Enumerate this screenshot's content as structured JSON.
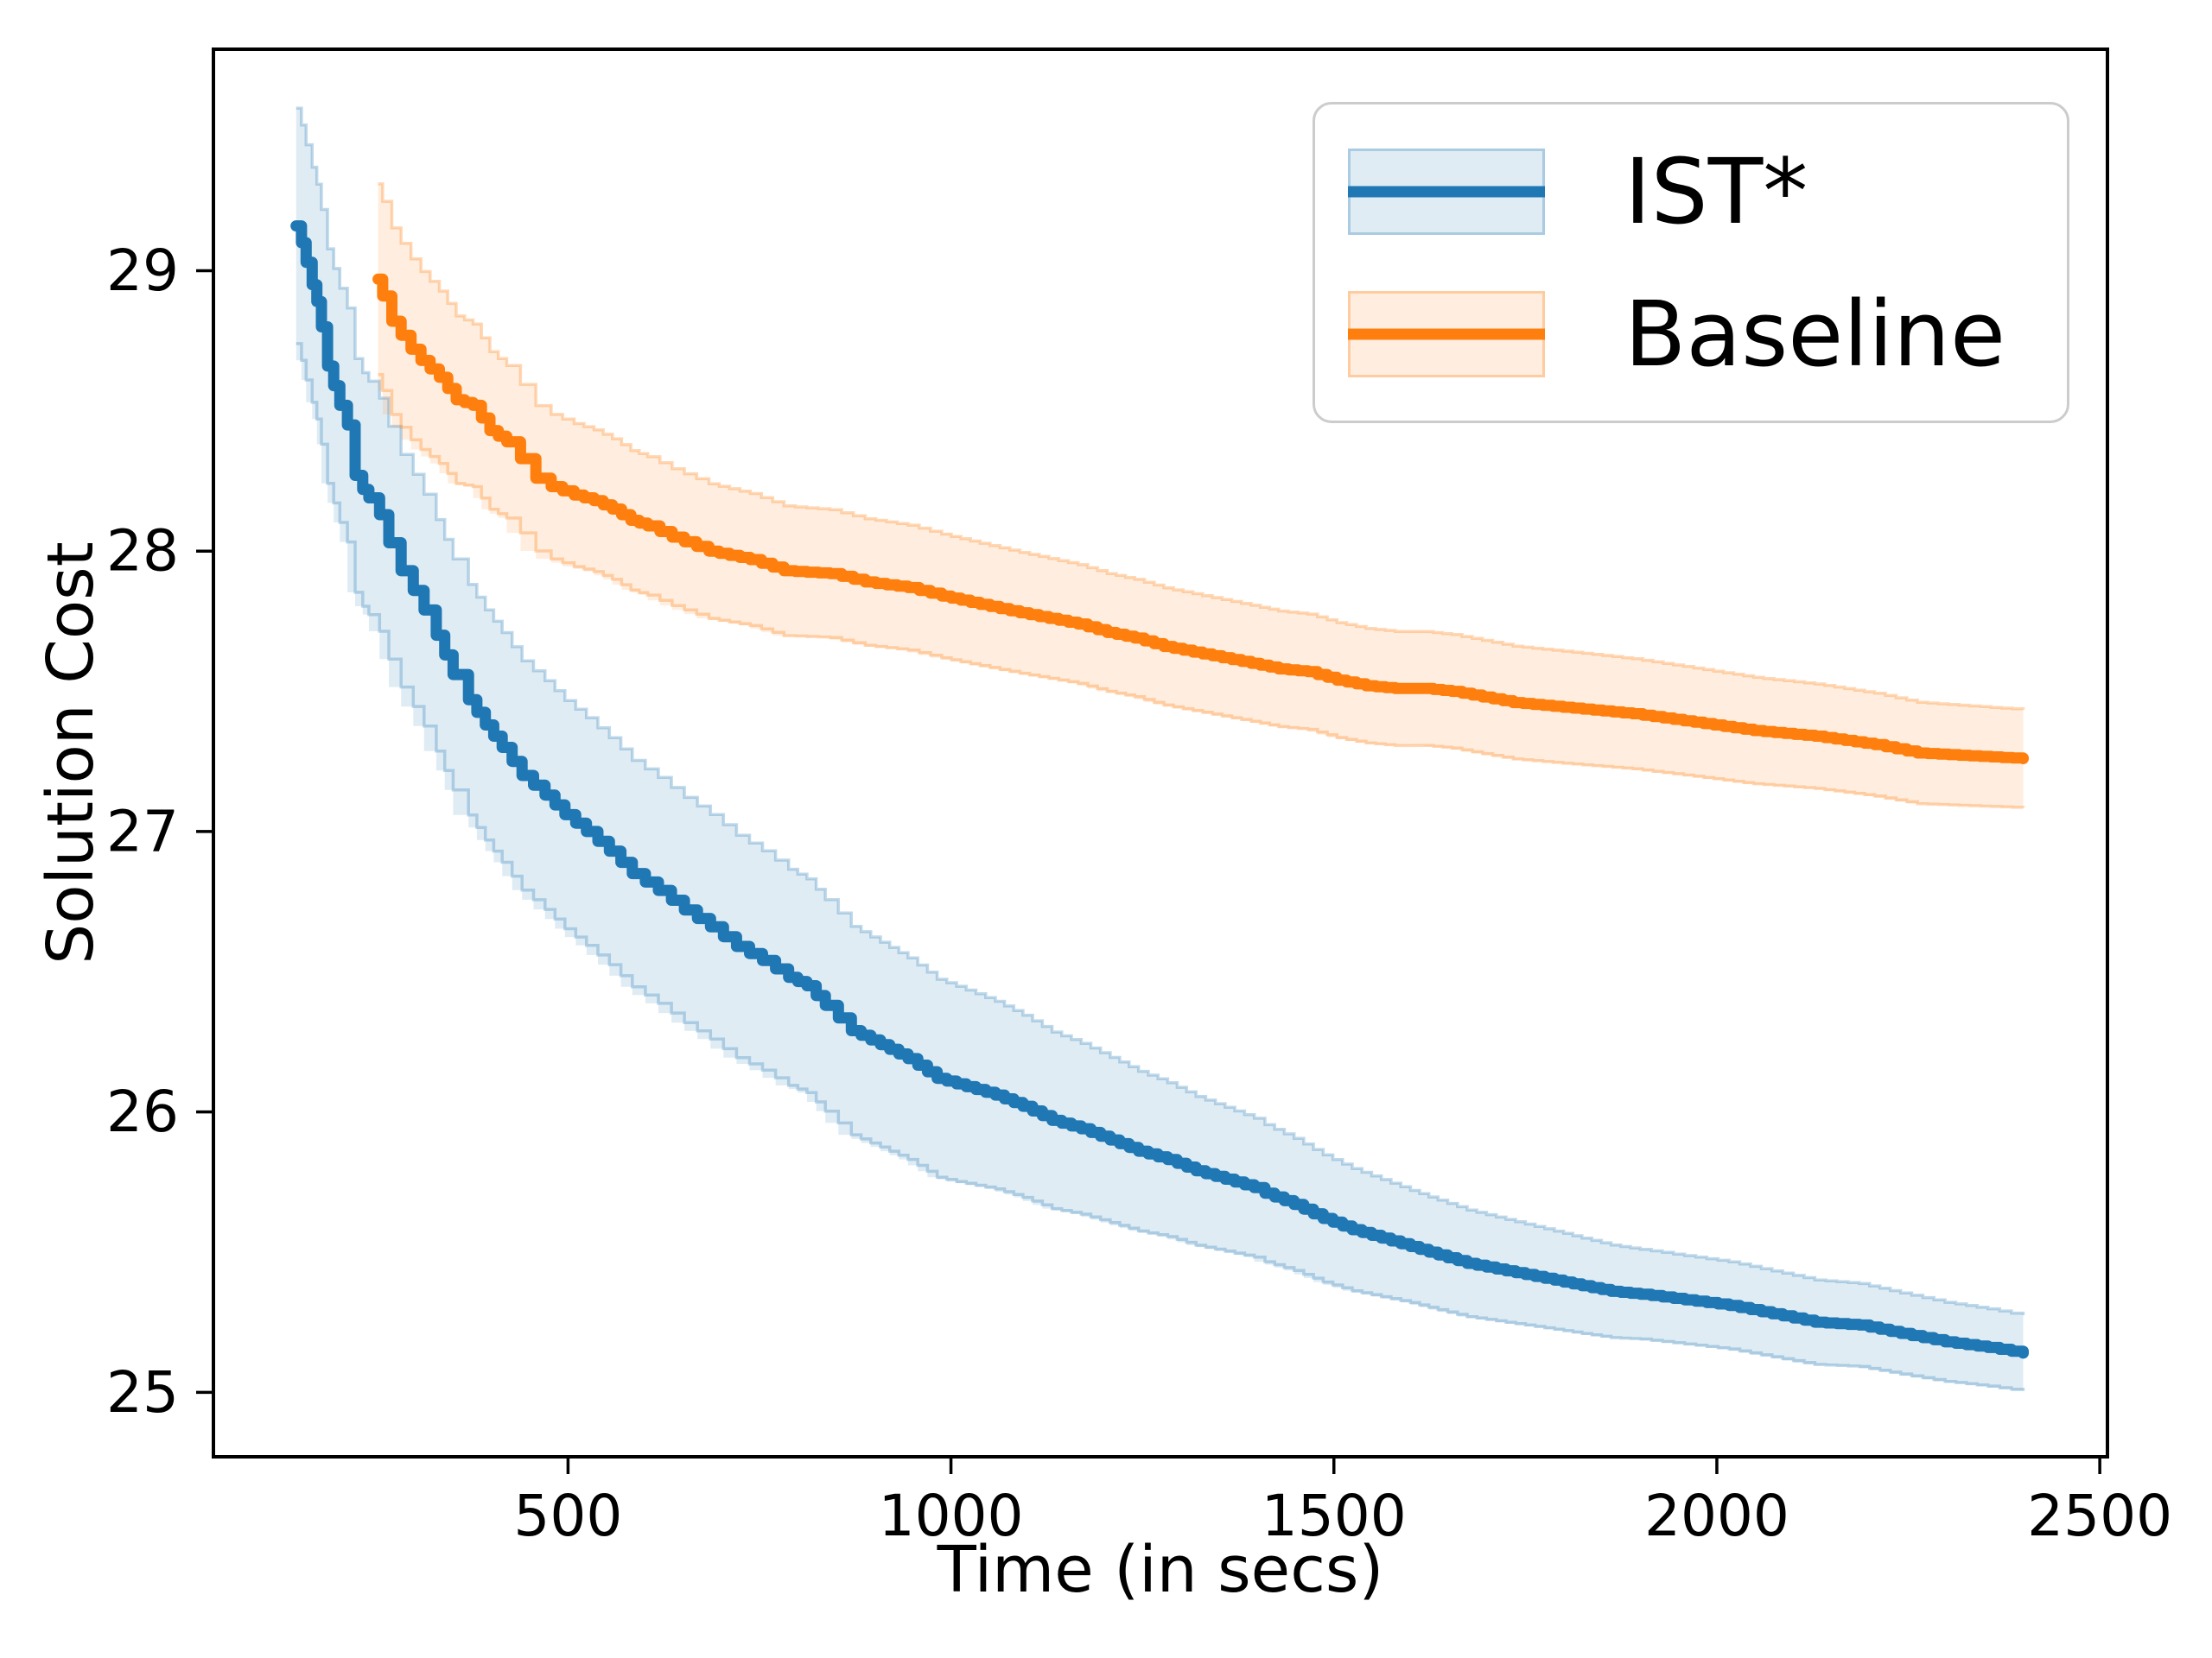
{
  "figure": {
    "background": "#ffffff",
    "spine_color": "#000000"
  },
  "chart_data": {
    "type": "line",
    "title": "",
    "xlabel": "Time (in secs)",
    "ylabel": "Solution Cost",
    "xlim": [
      37,
      2510
    ],
    "ylim": [
      24.77,
      29.79
    ],
    "x_ticks": [
      500,
      1000,
      1500,
      2000,
      2500
    ],
    "y_ticks": [
      25,
      26,
      27,
      28,
      29
    ],
    "grid": false,
    "legend_position": "upper right",
    "step_interpolation": "post",
    "band_style": "mean ± shaded band",
    "series": [
      {
        "name": "IST*",
        "color": "#1f77b4",
        "band_fill": "rgba(31,119,180,0.14)",
        "band_edge": "rgba(31,119,180,0.28)",
        "points": [
          [
            145,
            29.16
          ],
          [
            152,
            29.1
          ],
          [
            158,
            29.03
          ],
          [
            166,
            28.95
          ],
          [
            172,
            28.89
          ],
          [
            178,
            28.8
          ],
          [
            186,
            28.66
          ],
          [
            194,
            28.59
          ],
          [
            202,
            28.52
          ],
          [
            212,
            28.45
          ],
          [
            222,
            28.27
          ],
          [
            232,
            28.22
          ],
          [
            240,
            28.19
          ],
          [
            254,
            28.13
          ],
          [
            266,
            28.03
          ],
          [
            282,
            27.93
          ],
          [
            298,
            27.86
          ],
          [
            312,
            27.79
          ],
          [
            328,
            27.7
          ],
          [
            350,
            27.56
          ],
          [
            370,
            27.47
          ],
          [
            392,
            27.38
          ],
          [
            414,
            27.3
          ],
          [
            440,
            27.2
          ],
          [
            470,
            27.13
          ],
          [
            496,
            27.06
          ],
          [
            524,
            27.0
          ],
          [
            554,
            26.93
          ],
          [
            584,
            26.85
          ],
          [
            618,
            26.79
          ],
          [
            652,
            26.72
          ],
          [
            686,
            26.66
          ],
          [
            720,
            26.59
          ],
          [
            754,
            26.54
          ],
          [
            788,
            26.48
          ],
          [
            812,
            26.45
          ],
          [
            836,
            26.38
          ],
          [
            870,
            26.29
          ],
          [
            908,
            26.24
          ],
          [
            944,
            26.19
          ],
          [
            982,
            26.12
          ],
          [
            1020,
            26.09
          ],
          [
            1058,
            26.06
          ],
          [
            1094,
            26.02
          ],
          [
            1132,
            25.97
          ],
          [
            1170,
            25.94
          ],
          [
            1208,
            25.9
          ],
          [
            1245,
            25.86
          ],
          [
            1283,
            25.83
          ],
          [
            1320,
            25.79
          ],
          [
            1358,
            25.76
          ],
          [
            1396,
            25.73
          ],
          [
            1410,
            25.71
          ],
          [
            1448,
            25.67
          ],
          [
            1486,
            25.62
          ],
          [
            1524,
            25.58
          ],
          [
            1562,
            25.55
          ],
          [
            1600,
            25.52
          ],
          [
            1636,
            25.49
          ],
          [
            1674,
            25.46
          ],
          [
            1712,
            25.44
          ],
          [
            1750,
            25.42
          ],
          [
            1788,
            25.4
          ],
          [
            1824,
            25.38
          ],
          [
            1862,
            25.36
          ],
          [
            1900,
            25.35
          ],
          [
            1958,
            25.33
          ],
          [
            2016,
            25.31
          ],
          [
            2072,
            25.28
          ],
          [
            2128,
            25.25
          ],
          [
            2186,
            25.24
          ],
          [
            2240,
            25.21
          ],
          [
            2298,
            25.18
          ],
          [
            2354,
            25.16
          ],
          [
            2400,
            25.14
          ]
        ],
        "band_halfwidth": [
          [
            145,
            0.42
          ],
          [
            400,
            0.41
          ],
          [
            700,
            0.4
          ],
          [
            1000,
            0.35
          ],
          [
            1300,
            0.27
          ],
          [
            1600,
            0.2
          ],
          [
            1900,
            0.16
          ],
          [
            2150,
            0.15
          ],
          [
            2400,
            0.135
          ]
        ]
      },
      {
        "name": "Baseline",
        "color": "#ff7f0e",
        "band_fill": "rgba(255,127,14,0.13)",
        "band_edge": "rgba(255,127,14,0.30)",
        "points": [
          [
            252,
            28.97
          ],
          [
            258,
            28.91
          ],
          [
            270,
            28.82
          ],
          [
            282,
            28.77
          ],
          [
            295,
            28.72
          ],
          [
            308,
            28.68
          ],
          [
            332,
            28.62
          ],
          [
            354,
            28.54
          ],
          [
            376,
            28.52
          ],
          [
            398,
            28.43
          ],
          [
            420,
            28.39
          ],
          [
            438,
            28.33
          ],
          [
            458,
            28.26
          ],
          [
            478,
            28.23
          ],
          [
            508,
            28.2
          ],
          [
            534,
            28.18
          ],
          [
            558,
            28.15
          ],
          [
            582,
            28.11
          ],
          [
            604,
            28.09
          ],
          [
            636,
            28.05
          ],
          [
            684,
            28.0
          ],
          [
            738,
            27.97
          ],
          [
            782,
            27.93
          ],
          [
            842,
            27.92
          ],
          [
            888,
            27.89
          ],
          [
            944,
            27.87
          ],
          [
            988,
            27.84
          ],
          [
            1038,
            27.81
          ],
          [
            1090,
            27.78
          ],
          [
            1128,
            27.76
          ],
          [
            1166,
            27.74
          ],
          [
            1204,
            27.71
          ],
          [
            1240,
            27.69
          ],
          [
            1278,
            27.66
          ],
          [
            1316,
            27.64
          ],
          [
            1354,
            27.62
          ],
          [
            1392,
            27.6
          ],
          [
            1428,
            27.58
          ],
          [
            1466,
            27.57
          ],
          [
            1504,
            27.54
          ],
          [
            1542,
            27.52
          ],
          [
            1580,
            27.51
          ],
          [
            1618,
            27.51
          ],
          [
            1654,
            27.5
          ],
          [
            1734,
            27.46
          ],
          [
            1812,
            27.44
          ],
          [
            1890,
            27.42
          ],
          [
            1970,
            27.39
          ],
          [
            2048,
            27.36
          ],
          [
            2128,
            27.34
          ],
          [
            2206,
            27.31
          ],
          [
            2262,
            27.28
          ],
          [
            2330,
            27.27
          ],
          [
            2400,
            27.26
          ]
        ],
        "band_halfwidth": [
          [
            252,
            0.34
          ],
          [
            450,
            0.26
          ],
          [
            800,
            0.23
          ],
          [
            1200,
            0.21
          ],
          [
            1800,
            0.2
          ],
          [
            2400,
            0.175
          ]
        ]
      }
    ]
  }
}
